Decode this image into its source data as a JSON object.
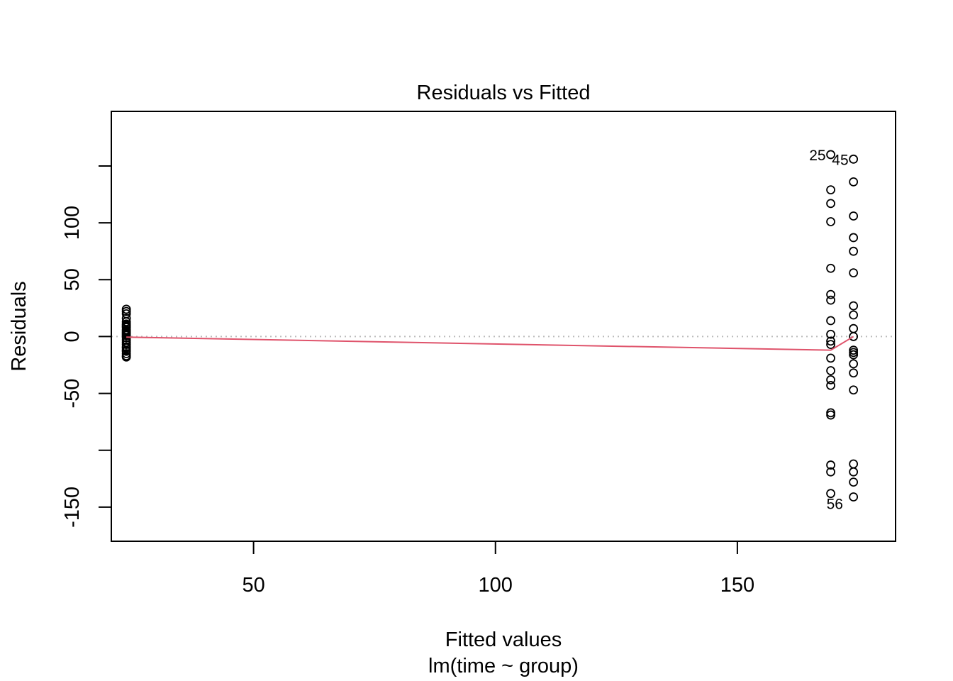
{
  "chart_data": {
    "type": "scatter",
    "title": "Residuals vs Fitted",
    "xlabel": "Fitted values",
    "subtitle": "lm(time ~ group)",
    "ylabel": "Residuals",
    "xlim": [
      20.6,
      182.7
    ],
    "ylim": [
      -180,
      198
    ],
    "x_ticks": [
      50,
      100,
      150
    ],
    "y_ticks": [
      -200,
      -150,
      -100,
      -50,
      0,
      50,
      100,
      150
    ],
    "y_tick_labels": [
      "",
      "-150",
      "",
      "-50",
      "0",
      "50",
      "100",
      ""
    ],
    "reference_line": {
      "y": 0,
      "style": "dotted",
      "color": "#bbbbbb"
    },
    "smooth_color": "#df536b",
    "point_style": "open-circle",
    "smooth": {
      "x": [
        23.7,
        169.3,
        174.0
      ],
      "y": [
        -0.5,
        -12.0,
        0.0
      ]
    },
    "series": [
      {
        "x": 23.7,
        "values": [
          24,
          22,
          20,
          16,
          13,
          11,
          10,
          9,
          8,
          6,
          5,
          4,
          3,
          2,
          1,
          -1,
          -3,
          -5,
          -7,
          -9,
          -10,
          -12,
          -13,
          -15,
          -17,
          -18
        ]
      },
      {
        "x": 169.3,
        "values": [
          160,
          129,
          117,
          101,
          60,
          37,
          32,
          14,
          2,
          -4,
          -7,
          -19,
          -30,
          -38,
          -43,
          -67,
          -69,
          -113,
          -119,
          -138
        ]
      },
      {
        "x": 174.0,
        "values": [
          156,
          136,
          106,
          87,
          75,
          56,
          27,
          19,
          7,
          0,
          -12,
          -14,
          -16,
          -24,
          -32,
          -47,
          -112,
          -119,
          -128,
          -141
        ]
      }
    ],
    "point_labels": [
      {
        "text": "25",
        "x": 169.3,
        "y": 160,
        "anchor": "end"
      },
      {
        "text": "45",
        "x": 174.0,
        "y": 156,
        "anchor": "end"
      },
      {
        "text": "56",
        "x": 169.3,
        "y": -138,
        "anchor": "start-below"
      }
    ]
  }
}
